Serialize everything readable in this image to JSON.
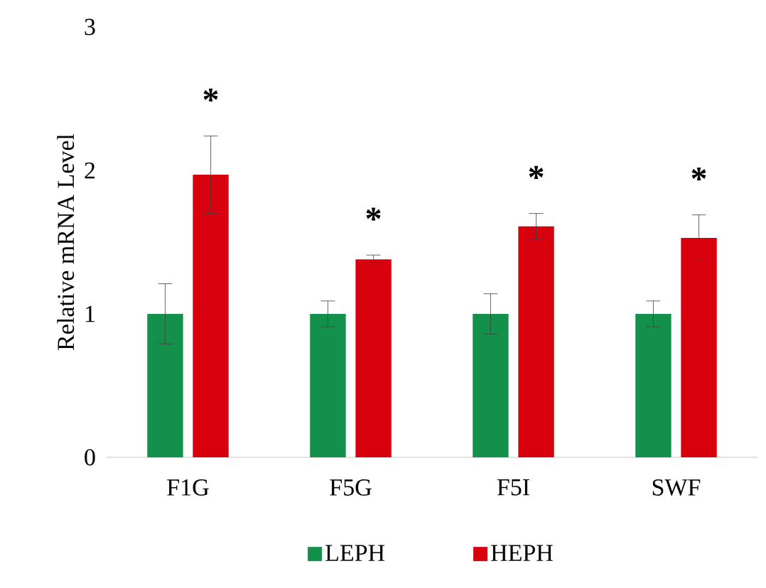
{
  "chart_data": {
    "type": "bar",
    "ylabel": "Relative mRNA Level",
    "categories": [
      "F1G",
      "F5G",
      "F5I",
      "SWF"
    ],
    "series": [
      {
        "name": "LEPH",
        "color": "#13904a",
        "values": [
          1,
          1,
          1,
          1
        ],
        "errors": [
          0.21,
          0.09,
          0.14,
          0.09
        ]
      },
      {
        "name": "HEPH",
        "color": "#d9000e",
        "values": [
          1.97,
          1.38,
          1.61,
          1.53
        ],
        "errors": [
          0.27,
          0.03,
          0.09,
          0.16
        ]
      }
    ],
    "ylim": [
      0,
      3
    ],
    "yticks": [
      0,
      1,
      2,
      3
    ],
    "legend": "bottom",
    "annotations": [
      "*",
      "*",
      "*",
      "*"
    ]
  }
}
